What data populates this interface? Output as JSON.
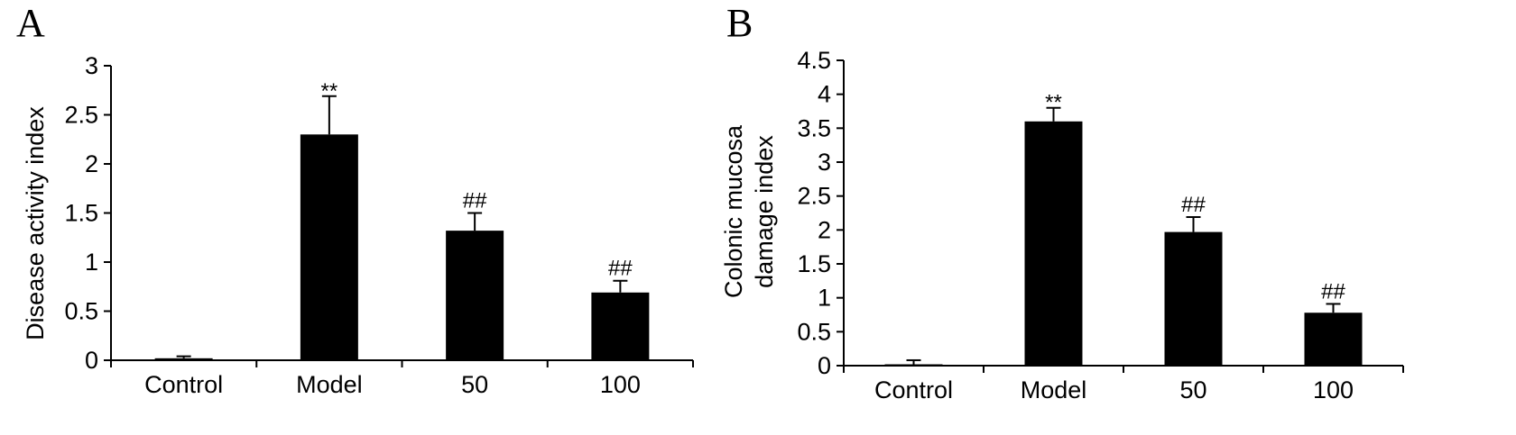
{
  "panels": [
    {
      "letter": "A"
    },
    {
      "letter": "B"
    }
  ],
  "chart_data": [
    {
      "type": "bar",
      "categories": [
        "Control",
        "Model",
        "50",
        "100"
      ],
      "values": [
        0.02,
        2.3,
        1.32,
        0.69
      ],
      "errors": [
        0.02,
        0.39,
        0.18,
        0.12
      ],
      "annotations": [
        "",
        "**",
        "##",
        "##"
      ],
      "ylabel": "Disease activity index",
      "xlabel": "",
      "ylim": [
        0,
        3
      ],
      "yticks": [
        "0",
        "0.5",
        "1",
        "1.5",
        "2",
        "2.5",
        "3"
      ],
      "bar_color": "#000000",
      "grid": false
    },
    {
      "type": "bar",
      "categories": [
        "Control",
        "Model",
        "50",
        "100"
      ],
      "values": [
        0.0,
        3.6,
        1.97,
        0.78
      ],
      "errors": [
        0.08,
        0.2,
        0.22,
        0.13
      ],
      "annotations": [
        "",
        "**",
        "##",
        "##"
      ],
      "ylabel": "Colonic mucosa damage index",
      "ylabel_lines": [
        "Colonic mucosa",
        "damage index"
      ],
      "xlabel": "",
      "ylim": [
        0,
        4.5
      ],
      "yticks": [
        "0",
        "0.5",
        "1",
        "1.5",
        "2",
        "2.5",
        "3",
        "3.5",
        "4",
        "4.5"
      ],
      "bar_color": "#000000",
      "grid": false
    }
  ]
}
